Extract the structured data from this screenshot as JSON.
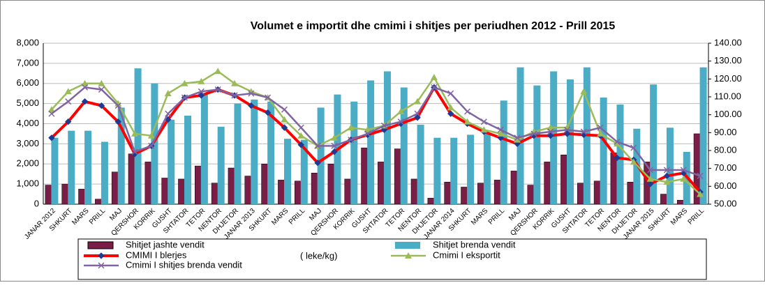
{
  "chart_data": {
    "type": "bar",
    "title": "Volumet e importit dhe cmimi i shitjes per periudhen 2012 - Prill  2015",
    "annotation": "( leke/kg)",
    "categories": [
      "JANAR 2012",
      "SHKURT",
      "MARS",
      "PRILL",
      "MAJ",
      "QERSHOR",
      "KORRIK",
      "GUSHT",
      "SHTATOR",
      "TETOR",
      "NENTOR",
      "DHJETOR",
      "JANAR 2013",
      "SHKURT",
      "MARS",
      "PRILL",
      "MAJ",
      "QERSHOR",
      "KORRIK",
      "GUSHT",
      "SHTATOR",
      "TETOR",
      "NENTOR",
      "DHJETOR",
      "JANAR 2014",
      "SHKURT",
      "MARS",
      "PRILL",
      "MAJ",
      "QERSHOR",
      "KORRIK",
      "GUSHT",
      "SHTATOR",
      "TETOR",
      "NENTOR",
      "DHJETOR",
      "JANAR 2015",
      "SHKURT",
      "MARS",
      "PRILL"
    ],
    "series": [
      {
        "name": "Shitjet jashte vendit",
        "type": "bar",
        "color": "#7a1e48",
        "values": [
          950,
          1000,
          750,
          250,
          1600,
          2500,
          2100,
          1300,
          1250,
          1900,
          1050,
          1800,
          1400,
          2000,
          1200,
          1150,
          1550,
          2000,
          1250,
          2800,
          2100,
          2750,
          1250,
          300,
          1100,
          850,
          1050,
          1200,
          1650,
          950,
          2100,
          2450,
          1050,
          1150,
          2550,
          1100,
          2100,
          500,
          200,
          3500
        ]
      },
      {
        "name": "Shitjet brenda vendit",
        "type": "bar",
        "color": "#4bacc6",
        "values": [
          3300,
          3650,
          3650,
          3100,
          4800,
          6750,
          6000,
          4200,
          4400,
          5500,
          3850,
          5000,
          5200,
          5100,
          3250,
          3200,
          4800,
          5450,
          5100,
          6150,
          6600,
          5800,
          3950,
          3300,
          3300,
          3450,
          3500,
          5150,
          6800,
          5900,
          6600,
          6200,
          6800,
          5300,
          4950,
          3750,
          5950,
          3800,
          2600,
          6800
        ]
      },
      {
        "name": "CMIMI I blerjes",
        "type": "line",
        "axis": "y2",
        "color": "#ff0000",
        "values": [
          87.1,
          96.1,
          107.4,
          105.1,
          96.1,
          78.1,
          82.6,
          97.3,
          109.6,
          110.8,
          114.1,
          110.8,
          105.1,
          101.2,
          92.8,
          83.2,
          73.1,
          79.3,
          86,
          88.8,
          91.6,
          95,
          98.4,
          115.3,
          100.6,
          95,
          90.5,
          87.1,
          83.8,
          88.3,
          88.3,
          89.4,
          88.8,
          88.3,
          75.9,
          74.8,
          61.3,
          65.8,
          67.4,
          56.8
        ]
      },
      {
        "name": "Cmimi I eksportit",
        "type": "line",
        "axis": "y2",
        "color": "#9bbb59",
        "values": [
          102.9,
          113,
          117.5,
          117.5,
          106.3,
          89.4,
          88.3,
          111.9,
          117.5,
          118.6,
          124.3,
          117.5,
          113,
          109.6,
          97.3,
          88.3,
          82.6,
          87.1,
          92.8,
          91.6,
          93.9,
          101.8,
          107.4,
          120.9,
          104,
          96.1,
          91.6,
          89.4,
          86,
          90.5,
          92.8,
          92.8,
          113,
          89.4,
          83.8,
          73.6,
          64.1,
          62.4,
          64.1,
          55.6
        ]
      },
      {
        "name": "Cmimi I shitjes brenda vendit",
        "type": "line",
        "axis": "y2",
        "color": "#8064a2",
        "values": [
          100.6,
          107.4,
          115.3,
          114.1,
          105.1,
          79.3,
          82.6,
          100.6,
          109.6,
          113,
          114.1,
          110.8,
          111.9,
          109.6,
          102.9,
          92.8,
          82.6,
          82.6,
          86,
          89.4,
          93.9,
          96.1,
          100.6,
          115.3,
          111.9,
          101.8,
          96.1,
          91.6,
          87.1,
          89.4,
          90.5,
          91.6,
          90.5,
          92.8,
          84.9,
          81.5,
          69.1,
          69.1,
          69.1,
          65.8
        ]
      }
    ],
    "ylim": [
      0,
      8000
    ],
    "yticks": [
      0,
      {
        "value": 1000,
        "label": "1,000"
      },
      {
        "value": 2000,
        "label": "2,000"
      },
      {
        "value": 3000,
        "label": "3,000"
      },
      {
        "value": 4000,
        "label": "4,000"
      },
      {
        "value": 5000,
        "label": "5,000"
      },
      {
        "value": 6000,
        "label": "6,000"
      },
      {
        "value": 7000,
        "label": "7,000"
      },
      {
        "value": 8000,
        "label": "8,000"
      }
    ],
    "y2lim": [
      50,
      140
    ],
    "y2ticks": [
      {
        "value": 50,
        "label": "50.00"
      },
      {
        "value": 60,
        "label": "60.00"
      },
      {
        "value": 70,
        "label": "70.00"
      },
      {
        "value": 80,
        "label": "80.00"
      },
      {
        "value": 90,
        "label": "90.00"
      },
      {
        "value": 100,
        "label": "100.00"
      },
      {
        "value": 110,
        "label": "110.00"
      },
      {
        "value": 120,
        "label": "120.00"
      },
      {
        "value": 130,
        "label": "130.00"
      },
      {
        "value": 140,
        "label": "140.00"
      }
    ],
    "grid": true
  }
}
